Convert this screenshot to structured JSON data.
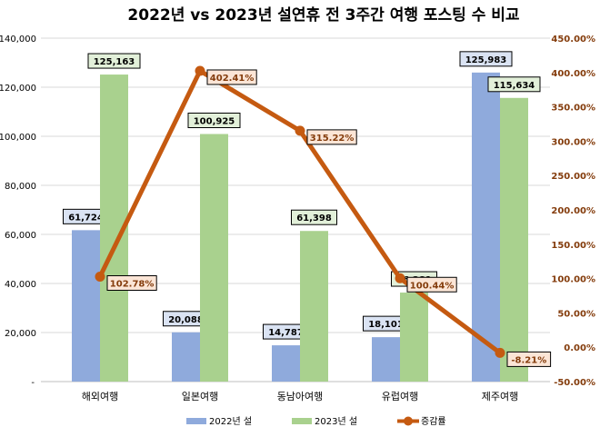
{
  "chart_data": {
    "type": "bar",
    "title": "2022년 vs 2023년 설연휴 전 3주간 여행 포스팅 수 비교",
    "categories": [
      "해외여행",
      "일본여행",
      "동남아여행",
      "유럽여행",
      "제주여행"
    ],
    "series": [
      {
        "name": "2022년 설",
        "type": "bar",
        "axis": "left",
        "color": "#8FAADC",
        "values": [
          61724,
          20088,
          14787,
          18101,
          125983
        ],
        "labels": [
          "61,724",
          "20,088",
          "14,787",
          "18,101",
          "125,983"
        ]
      },
      {
        "name": "2023년 설",
        "type": "bar",
        "axis": "left",
        "color": "#A9D18E",
        "values": [
          125163,
          100925,
          61398,
          36281,
          115634
        ],
        "labels": [
          "125,163",
          "100,925",
          "61,398",
          "36,281",
          "115,634"
        ]
      },
      {
        "name": "증감률",
        "type": "line",
        "axis": "right",
        "color": "#C55A11",
        "values": [
          102.78,
          402.41,
          315.22,
          100.44,
          -8.21
        ],
        "labels": [
          "102.78%",
          "402.41%",
          "315.22%",
          "100.44%",
          "-8.21%"
        ]
      }
    ],
    "y_left": {
      "range": [
        0,
        140000
      ],
      "ticks": [
        "-",
        "20,000",
        "40,000",
        "60,000",
        "80,000",
        "100,000",
        "120,000",
        "140,000"
      ]
    },
    "y_right": {
      "range": [
        -50,
        450
      ],
      "ticks": [
        "-50.00%",
        "0.00%",
        "50.00%",
        "100.00%",
        "150.00%",
        "200.00%",
        "250.00%",
        "300.00%",
        "350.00%",
        "400.00%",
        "450.00%"
      ],
      "color": "#843C0C"
    },
    "grid": true,
    "legend": "bottom"
  }
}
